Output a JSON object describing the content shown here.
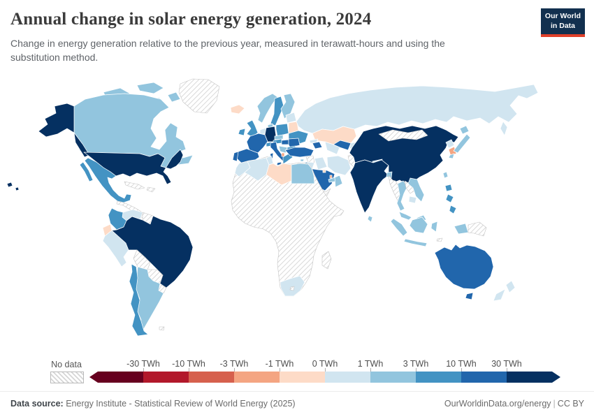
{
  "header": {
    "title": "Annual change in solar energy generation, 2024",
    "subtitle": "Change in energy generation relative to the previous year, measured in terawatt-hours and using the substitution method.",
    "logo": {
      "line1": "Our World",
      "line2": "in Data",
      "bg_color": "#12304f",
      "accent_color": "#e0402a"
    }
  },
  "legend": {
    "no_data_label": "No data",
    "tick_labels": [
      "-30 TWh",
      "-10 TWh",
      "-3 TWh",
      "-1 TWh",
      "0 TWh",
      "1 TWh",
      "3 TWh",
      "10 TWh",
      "30 TWh"
    ],
    "colors": [
      "#67001f",
      "#b2182b",
      "#d6604d",
      "#f4a582",
      "#fddbc7",
      "#d1e5f0",
      "#92c5de",
      "#4393c3",
      "#2166ac",
      "#053061"
    ]
  },
  "footer": {
    "source_label": "Data source:",
    "source_text": " Energy Institute - Statistical Review of World Energy (2025)",
    "credit_url": "OurWorldinData.org/energy",
    "divider": "|",
    "license": "CC BY"
  },
  "chart_data": {
    "type": "choropleth-map",
    "title": "Annual change in solar energy generation, 2024",
    "year": 2024,
    "unit": "TWh",
    "projection": "world",
    "no_data_style": "diagonal-hatch",
    "bands": [
      {
        "label": "Less than -30 TWh",
        "color": "#67001f",
        "countries": []
      },
      {
        "label": "-30 to -10 TWh",
        "color": "#b2182b",
        "countries": []
      },
      {
        "label": "-10 to -3 TWh",
        "color": "#d6604d",
        "countries": []
      },
      {
        "label": "-3 to -1 TWh",
        "color": "#f4a582",
        "countries": [
          "south-korea",
          "albania",
          "qatar"
        ]
      },
      {
        "label": "-1 to 0 TWh",
        "color": "#fddbc7",
        "countries": [
          "kazakhstan",
          "belarus",
          "ecuador",
          "iceland",
          "libya",
          "kuwait"
        ]
      },
      {
        "label": "0 to 1 TWh",
        "color": "#d1e5f0",
        "countries": [
          "russia",
          "venezuela",
          "peru",
          "algeria",
          "morocco",
          "tunisia",
          "south-africa",
          "new-zealand",
          "iraq",
          "jordan",
          "cambodia",
          "north-korea",
          "baltic-states",
          "benelux",
          "iran",
          "turkmenistan",
          "kyrgyzstan",
          "georgia",
          "nepal"
        ]
      },
      {
        "label": "1 to 3 TWh",
        "color": "#92c5de",
        "countries": [
          "canada",
          "argentina",
          "norway",
          "finland",
          "denmark",
          "czechia",
          "serbia",
          "japan",
          "thailand",
          "vietnam",
          "malaysia",
          "indonesia",
          "pakistan",
          "oman",
          "united-arab-emirates",
          "sri-lanka",
          "taiwan",
          "bangladesh",
          "egypt",
          "cyprus"
        ]
      },
      {
        "label": "3 to 10 TWh",
        "color": "#4393c3",
        "countries": [
          "mexico",
          "colombia",
          "chile",
          "united-kingdom",
          "ireland",
          "sweden",
          "poland",
          "ukraine",
          "switzerland",
          "austria",
          "bulgaria",
          "greece",
          "philippines",
          "israel"
        ]
      },
      {
        "label": "10 to 30 TWh",
        "color": "#2166ac",
        "countries": [
          "france",
          "spain",
          "portugal",
          "italy",
          "turkey",
          "hungary",
          "romania",
          "saudi-arabia",
          "australia",
          "azerbaijan",
          "uzbekistan",
          "panama"
        ]
      },
      {
        "label": "More than 30 TWh",
        "color": "#053061",
        "countries": [
          "united-states",
          "china",
          "india",
          "brazil",
          "germany"
        ]
      },
      {
        "label": "No data",
        "color": "hatch",
        "countries": [
          "greenland",
          "cuba",
          "hispaniola",
          "central-america",
          "guyanas",
          "bolivia",
          "paraguay",
          "uruguay",
          "falkland-islands",
          "syria",
          "afghanistan",
          "yemen",
          "mongolia",
          "myanmar",
          "laos",
          "papua-new-guinea",
          "timor",
          "africa-interior",
          "lesotho",
          "madagascar"
        ]
      }
    ]
  }
}
